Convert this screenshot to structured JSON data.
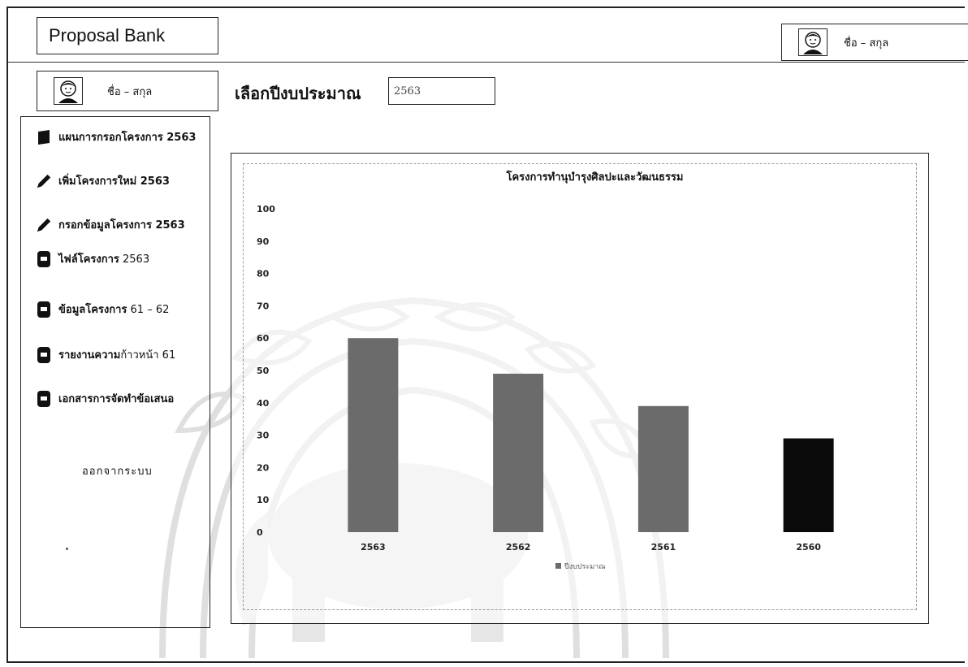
{
  "header": {
    "brand": "Proposal Bank",
    "user_name": "ชื่อ – สกุล"
  },
  "sidebar": {
    "user_name": "ชื่อ – สกุล",
    "items": [
      {
        "label": "แผนการกรอกโครงการ 2563",
        "icon": "book-icon"
      },
      {
        "label": "เพิ่มโครงการใหม่ 2563",
        "icon": "pencil-icon"
      },
      {
        "label": "กรอกข้อมูลโครงการ 2563",
        "icon": "pencil-icon"
      },
      {
        "label_bold": "ไฟล์โครงการ",
        "label_light": " 2563",
        "icon": "file-icon"
      },
      {
        "label_bold": "ข้อมูลโครงการ",
        "label_light": " 61 – 62",
        "icon": "file-icon"
      },
      {
        "label_bold": "รายงานความ",
        "label_light": "ก้าวหน้า 61",
        "icon": "file-icon"
      },
      {
        "label_bold": "เอกสารการจัดทำข้อเสนอ",
        "label_light": "",
        "icon": "file-icon"
      }
    ],
    "logout_label": "ออกจากระบบ"
  },
  "main": {
    "year_label": "เลือกปีงบประมาณ",
    "year_value": "2563"
  },
  "chart_data": {
    "type": "bar",
    "title": "โครงการทำนุบำรุงศิลปะและวัฒนธรรม",
    "categories": [
      "2563",
      "2562",
      "2561",
      "2560"
    ],
    "values": [
      60,
      49,
      39,
      29
    ],
    "bar_colors": [
      "#6b6b6b",
      "#6b6b6b",
      "#6b6b6b",
      "#0a0a0a"
    ],
    "ylim": [
      0,
      100
    ],
    "yticks": [
      0,
      10,
      20,
      30,
      40,
      50,
      60,
      70,
      80,
      90,
      100
    ],
    "legend": "ปีงบประมาณ",
    "legend_position": "bottom"
  }
}
